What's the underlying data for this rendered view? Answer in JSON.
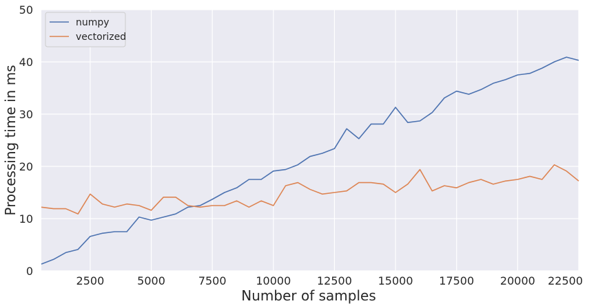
{
  "chart_data": {
    "type": "line",
    "title": "",
    "xlabel": "Number of samples",
    "ylabel": "Processing time in ms",
    "xlim": [
      500,
      22500
    ],
    "ylim": [
      0,
      50
    ],
    "xticks": [
      2500,
      5000,
      7500,
      10000,
      12500,
      15000,
      17500,
      20000,
      22500
    ],
    "yticks": [
      0,
      10,
      20,
      30,
      40,
      50
    ],
    "grid": true,
    "legend": "top-left",
    "x": [
      500,
      1000,
      1500,
      2000,
      2500,
      3000,
      3500,
      4000,
      4500,
      5000,
      5500,
      6000,
      6500,
      7000,
      7500,
      8000,
      8500,
      9000,
      9500,
      10000,
      10500,
      11000,
      11500,
      12000,
      12500,
      13000,
      13500,
      14000,
      14500,
      15000,
      15500,
      16000,
      16500,
      17000,
      17500,
      18000,
      18500,
      19000,
      19500,
      20000,
      20500,
      21000,
      21500,
      22000,
      22500
    ],
    "series": [
      {
        "name": "numpy",
        "color": "#4c72b0",
        "values": [
          1.3,
          2.2,
          3.5,
          4.1,
          6.6,
          7.2,
          7.5,
          7.5,
          10.3,
          9.7,
          10.3,
          10.9,
          12.2,
          12.5,
          13.7,
          15.0,
          15.9,
          17.5,
          17.5,
          19.1,
          19.4,
          20.3,
          21.9,
          22.5,
          23.4,
          27.2,
          25.3,
          28.1,
          28.1,
          31.3,
          28.4,
          28.7,
          30.3,
          33.1,
          34.4,
          33.8,
          34.7,
          35.9,
          36.6,
          37.5,
          37.8,
          38.8,
          40.0,
          40.9,
          40.3
        ]
      },
      {
        "name": "vectorized",
        "color": "#dd8452",
        "values": [
          12.2,
          11.9,
          11.9,
          10.9,
          14.7,
          12.8,
          12.2,
          12.8,
          12.5,
          11.6,
          14.1,
          14.1,
          12.5,
          12.2,
          12.5,
          12.5,
          13.4,
          12.2,
          13.4,
          12.5,
          16.3,
          16.9,
          15.6,
          14.7,
          15.0,
          15.3,
          16.9,
          16.9,
          16.6,
          15.0,
          16.6,
          19.4,
          15.3,
          16.3,
          15.9,
          16.9,
          17.5,
          16.6,
          17.2,
          17.5,
          18.1,
          17.5,
          20.3,
          19.1,
          17.2
        ]
      }
    ]
  }
}
